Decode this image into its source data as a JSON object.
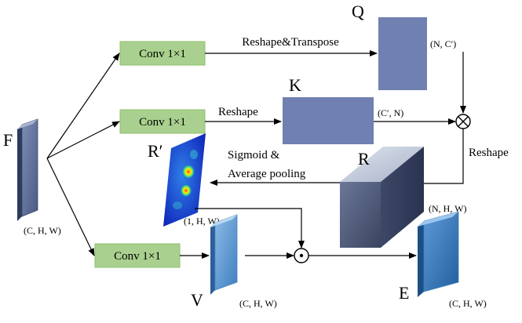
{
  "nodes": {
    "conv_q": "Conv 1×1",
    "conv_k": "Conv 1×1",
    "conv_v": "Conv 1×1",
    "Q": "Q",
    "K": "K",
    "F": "F",
    "R": "R",
    "R_prime": "R′",
    "V": "V",
    "E": "E"
  },
  "edges": {
    "reshape_transpose": "Reshape&Transpose",
    "reshape_k": "Reshape",
    "reshape_r": "Reshape",
    "sigmoid_line1": "Sigmoid &",
    "sigmoid_line2": "Average pooling"
  },
  "shapes": {
    "q": "(N, C′)",
    "k": "(C′, N)",
    "f": "(C, H, W)",
    "r": "(N, H, W)",
    "r_prime": "(1, H, W)",
    "v": "(C, H, W)",
    "e": "(C, H, W)"
  },
  "operators": {
    "matmul": "⊗",
    "hadamard": "⊙"
  },
  "colors": {
    "conv_fill": "#a9d08e",
    "conv_stroke": "#8fbf6f",
    "qk_fill": "#7080b0",
    "f_face": "#5a6b95",
    "v_face": "#5b9bd5",
    "e_face": "#2e75b6",
    "r_front": "#4d5a78",
    "r_top": "#c0c8da",
    "r_side": "#3a4560"
  }
}
